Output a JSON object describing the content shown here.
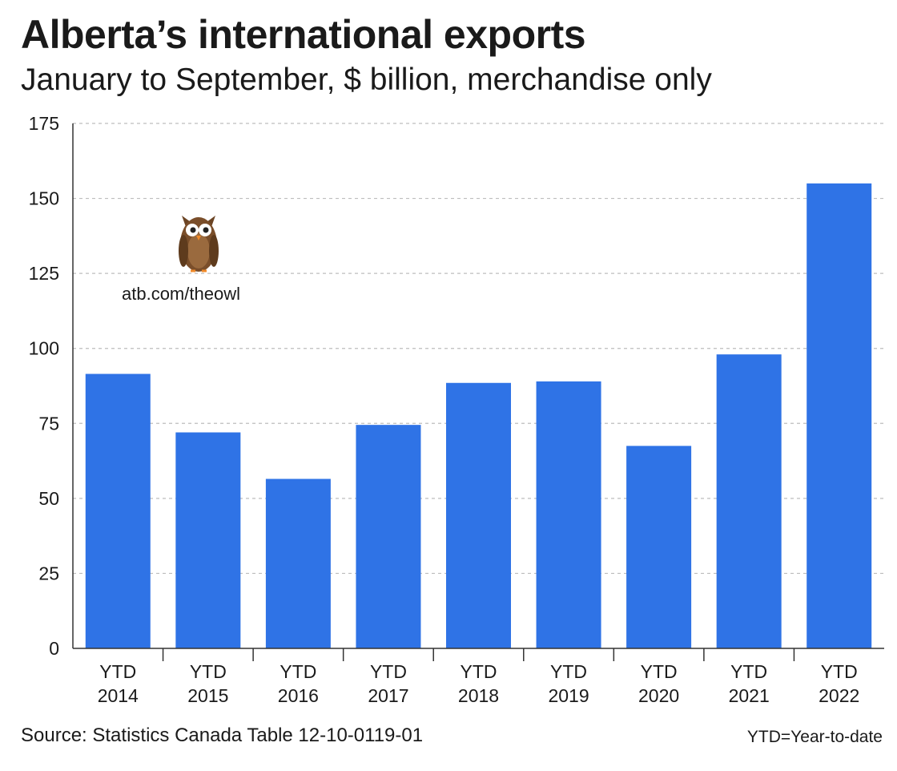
{
  "title": "Alberta’s international exports",
  "subtitle": "January to September, $ billion, merchandise only",
  "logo": {
    "icon": "owl-icon",
    "url_text": "atb.com/theowl"
  },
  "source": "Source: Statistics Canada Table 12-10-0119-01",
  "footnote": "YTD=Year-to-date",
  "colors": {
    "bar": "#2f73e6",
    "grid": "#bdbdbd",
    "axis": "#333333"
  },
  "chart_data": {
    "type": "bar",
    "categories": [
      [
        "YTD",
        "2014"
      ],
      [
        "YTD",
        "2015"
      ],
      [
        "YTD",
        "2016"
      ],
      [
        "YTD",
        "2017"
      ],
      [
        "YTD",
        "2018"
      ],
      [
        "YTD",
        "2019"
      ],
      [
        "YTD",
        "2020"
      ],
      [
        "YTD",
        "2021"
      ],
      [
        "YTD",
        "2022"
      ]
    ],
    "values": [
      91.5,
      72,
      56.5,
      74.5,
      88.5,
      89,
      67.5,
      98,
      155
    ],
    "ylim": [
      0,
      175
    ],
    "yticks": [
      0,
      25,
      50,
      75,
      100,
      125,
      150,
      175
    ],
    "grid": true,
    "xlabel": "",
    "ylabel": ""
  }
}
